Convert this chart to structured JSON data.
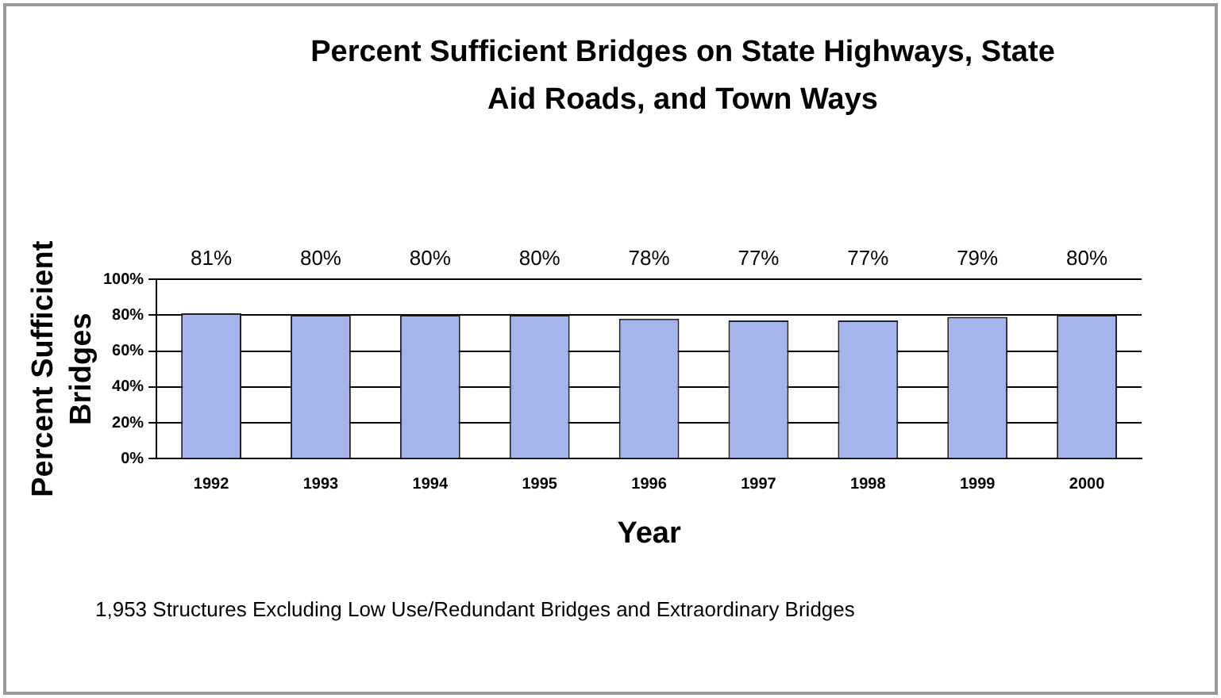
{
  "chart_data": {
    "type": "bar",
    "title": "Percent Sufficient Bridges on State Highways, State Aid Roads, and Town Ways",
    "xlabel": "Year",
    "ylabel": "Percent Sufficient Bridges",
    "categories": [
      "1992",
      "1993",
      "1994",
      "1995",
      "1996",
      "1997",
      "1998",
      "1999",
      "2000"
    ],
    "values": [
      81,
      80,
      80,
      80,
      78,
      77,
      77,
      79,
      80
    ],
    "value_labels": [
      "81%",
      "80%",
      "80%",
      "80%",
      "78%",
      "77%",
      "77%",
      "79%",
      "80%"
    ],
    "color": "#a6b4ee",
    "ylim": [
      0,
      100
    ],
    "yticks": [
      {
        "value": 0,
        "label": "0%"
      },
      {
        "value": 20,
        "label": "20%"
      },
      {
        "value": 40,
        "label": "40%"
      },
      {
        "value": 60,
        "label": "60%"
      },
      {
        "value": 80,
        "label": "80%"
      },
      {
        "value": 100,
        "label": "100%"
      }
    ],
    "grid": "y",
    "legend": false,
    "annotations": [
      "1,953 Structures Excluding Low Use/Redundant Bridges and Extraordinary Bridges"
    ]
  }
}
